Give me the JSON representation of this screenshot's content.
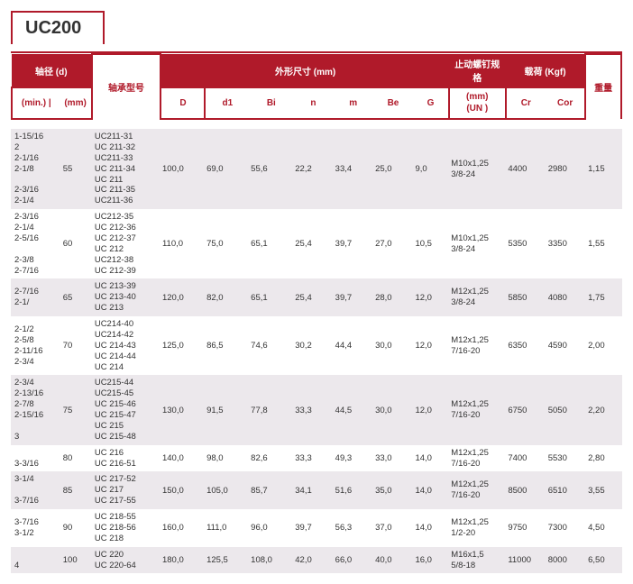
{
  "title": "UC200",
  "headers": {
    "shaft_d": "轴径 (d)",
    "model": "轴承型号",
    "dims": "外形尺寸 (mm)",
    "stop": "止动螺钉规格",
    "load": "载荷 (Kgf)",
    "min": "(min.)",
    "pipe": "|",
    "mm": "(mm)",
    "D": "D",
    "d1": "d1",
    "Bi": "Bi",
    "n": "n",
    "m": "m",
    "Be": "Be",
    "G": "G",
    "stop2": "(mm)\n(UN )",
    "Cr": "Cr",
    "Cor": "Cor",
    "wt": "重量"
  },
  "colors": {
    "brand": "#b01a2a",
    "grey_row": "#ece8ec"
  },
  "rows": [
    {
      "grey": true,
      "min": "1-15/16\n2\n2-1/16\n2-1/8\n\n2-3/16\n2-1/4",
      "mm": "55",
      "model": "UC211-31\nUC 211-32\nUC211-33\nUC 211-34\nUC 211\nUC 211-35\nUC211-36",
      "D": "100,0",
      "d1": "69,0",
      "Bi": "55,6",
      "n": "22,2",
      "m": "33,4",
      "Be": "25,0",
      "G": "9,0",
      "stop": "M10x1,25\n3/8-24",
      "Cr": "4400",
      "Cor": "2980",
      "wt": "1,15"
    },
    {
      "grey": false,
      "min": "2-3/16\n2-1/4\n2-5/16\n\n2-3/8\n2-7/16",
      "mm": "60",
      "model": "UC212-35\nUC 212-36\nUC 212-37\nUC 212\nUC212-38\nUC 212-39",
      "D": "110,0",
      "d1": "75,0",
      "Bi": "65,1",
      "n": "25,4",
      "m": "39,7",
      "Be": "27,0",
      "G": "10,5",
      "stop": "M10x1,25\n3/8-24",
      "Cr": "5350",
      "Cor": "3350",
      "wt": "1,55"
    },
    {
      "grey": true,
      "min": "2-7/16\n2-1/",
      "mm": "65",
      "model": "UC 213-39\nUC 213-40\nUC 213",
      "D": "120,0",
      "d1": "82,0",
      "Bi": "65,1",
      "n": "25,4",
      "m": "39,7",
      "Be": "28,0",
      "G": "12,0",
      "stop": "M12x1,25\n3/8-24",
      "Cr": "5850",
      "Cor": "4080",
      "wt": "1,75"
    },
    {
      "grey": false,
      "min": "2-1/2\n2-5/8\n2-11/16\n2-3/4",
      "mm": "70",
      "model": "UC214-40\nUC214-42\nUC 214-43\nUC 214-44\nUC 214",
      "D": "125,0",
      "d1": "86,5",
      "Bi": "74,6",
      "n": "30,2",
      "m": "44,4",
      "Be": "30,0",
      "G": "12,0",
      "stop": "M12x1,25\n7/16-20",
      "Cr": "6350",
      "Cor": "4590",
      "wt": "2,00"
    },
    {
      "grey": true,
      "min": "2-3/4\n2-13/16\n2-7/8\n2-15/16\n\n3",
      "mm": "75",
      "model": "UC215-44\nUC215-45\nUC 215-46\nUC 215-47\nUC 215\nUC 215-48",
      "D": "130,0",
      "d1": "91,5",
      "Bi": "77,8",
      "n": "33,3",
      "m": "44,5",
      "Be": "30,0",
      "G": "12,0",
      "stop": "M12x1,25\n7/16-20",
      "Cr": "6750",
      "Cor": "5050",
      "wt": "2,20"
    },
    {
      "grey": false,
      "min": "\n3-3/16",
      "mm": "80",
      "model": "UC 216\nUC 216-51",
      "D": "140,0",
      "d1": "98,0",
      "Bi": "82,6",
      "n": "33,3",
      "m": "49,3",
      "Be": "33,0",
      "G": "14,0",
      "stop": "M12x1,25\n7/16-20",
      "Cr": "7400",
      "Cor": "5530",
      "wt": "2,80"
    },
    {
      "grey": true,
      "min": "3-1/4\n\n3-7/16",
      "mm": "85",
      "model": "UC 217-52\nUC 217\nUC 217-55",
      "D": "150,0",
      "d1": "105,0",
      "Bi": "85,7",
      "n": "34,1",
      "m": "51,6",
      "Be": "35,0",
      "G": "14,0",
      "stop": "M12x1,25\n7/16-20",
      "Cr": "8500",
      "Cor": "6510",
      "wt": "3,55"
    },
    {
      "grey": false,
      "min": "3-7/16\n3-1/2",
      "mm": "90",
      "model": "UC 218-55\nUC 218-56\nUC 218",
      "D": "160,0",
      "d1": "111,0",
      "Bi": "96,0",
      "n": "39,7",
      "m": "56,3",
      "Be": "37,0",
      "G": "14,0",
      "stop": "M12x1,25\n1/2-20",
      "Cr": "9750",
      "Cor": "7300",
      "wt": "4,50"
    },
    {
      "grey": true,
      "min": "\n4",
      "mm": "100",
      "model": "UC 220\nUC 220-64",
      "D": "180,0",
      "d1": "125,5",
      "Bi": "108,0",
      "n": "42,0",
      "m": "66,0",
      "Be": "40,0",
      "G": "16,0",
      "stop": "M16x1,5\n5/8-18",
      "Cr": "11000",
      "Cor": "8000",
      "wt": "6,50"
    }
  ]
}
